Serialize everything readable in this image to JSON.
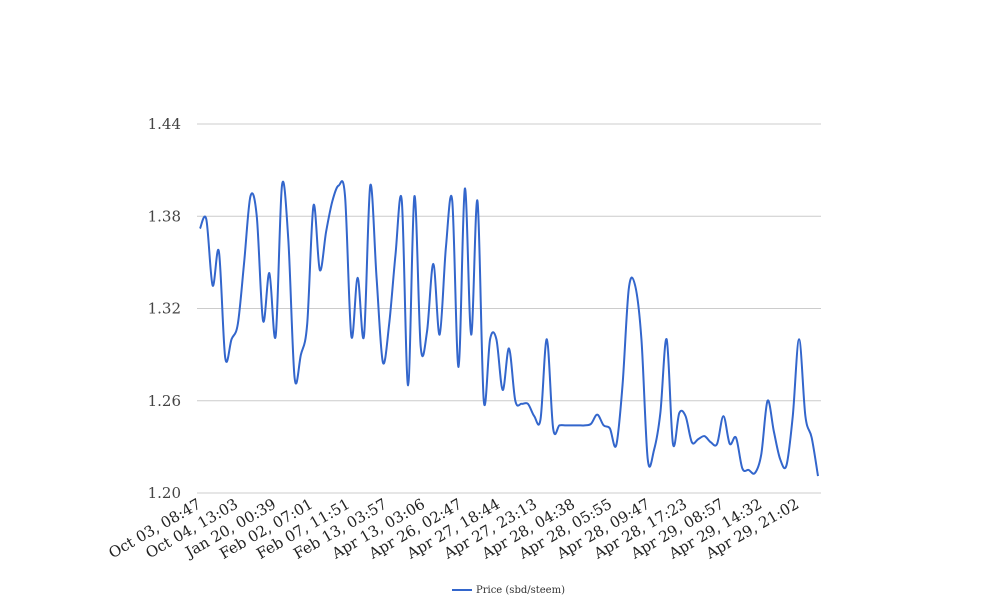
{
  "chart_data": {
    "type": "line",
    "title": "",
    "xlabel": "",
    "ylabel": "",
    "ylim": [
      1.2,
      1.44
    ],
    "y_ticks": [
      "1.44",
      "1.38",
      "1.32",
      "1.26",
      "1.20"
    ],
    "y_tick_values": [
      1.44,
      1.38,
      1.32,
      1.26,
      1.2
    ],
    "x_tick_labels": [
      "Oct 03, 08:47",
      "Oct 04, 13:03",
      "Jan 20, 00:39",
      "Feb 02, 07:01",
      "Feb 07, 11:51",
      "Feb 13, 03:57",
      "Apr 13, 03:06",
      "Apr 26, 02:47",
      "Apr 27, 18:44",
      "Apr 27, 23:13",
      "Apr 28, 04:38",
      "Apr 28, 05:55",
      "Apr 28, 09:47",
      "Apr 28, 17:23",
      "Apr 29, 08:57",
      "Apr 29, 14:32",
      "Apr 29, 21:02"
    ],
    "grid": true,
    "legend_position": "bottom",
    "series": [
      {
        "name": "Price (sbd/steem)",
        "color": "#3366cc",
        "values": [
          1.372,
          1.378,
          1.335,
          1.357,
          1.288,
          1.3,
          1.31,
          1.35,
          1.393,
          1.38,
          1.312,
          1.343,
          1.302,
          1.4,
          1.365,
          1.275,
          1.29,
          1.31,
          1.387,
          1.345,
          1.37,
          1.39,
          1.4,
          1.393,
          1.302,
          1.34,
          1.302,
          1.4,
          1.34,
          1.285,
          1.31,
          1.355,
          1.39,
          1.27,
          1.393,
          1.295,
          1.305,
          1.349,
          1.303,
          1.36,
          1.39,
          1.282,
          1.398,
          1.303,
          1.39,
          1.26,
          1.3,
          1.3,
          1.267,
          1.294,
          1.26,
          1.258,
          1.258,
          1.25,
          1.248,
          1.3,
          1.242,
          1.244,
          1.244,
          1.244,
          1.244,
          1.244,
          1.245,
          1.251,
          1.244,
          1.242,
          1.231,
          1.27,
          1.333,
          1.335,
          1.3,
          1.222,
          1.228,
          1.252,
          1.3,
          1.232,
          1.252,
          1.25,
          1.233,
          1.235,
          1.237,
          1.233,
          1.232,
          1.25,
          1.232,
          1.236,
          1.216,
          1.215,
          1.213,
          1.225,
          1.26,
          1.24,
          1.222,
          1.218,
          1.25,
          1.3,
          1.25,
          1.236,
          1.211
        ]
      }
    ]
  }
}
